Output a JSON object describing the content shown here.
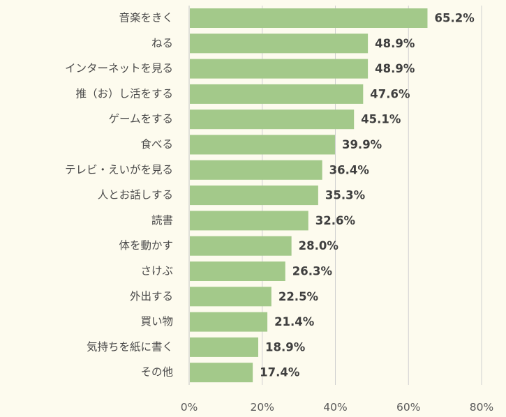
{
  "chart_data": {
    "type": "bar",
    "orientation": "horizontal",
    "title": "",
    "xlabel": "",
    "ylabel": "",
    "xlim": [
      0,
      80
    ],
    "x_ticks": [
      0,
      20,
      40,
      60,
      80
    ],
    "x_tick_labels": [
      "0%",
      "20%",
      "40%",
      "60%",
      "80%"
    ],
    "grid": true,
    "legend": "none",
    "bar_color": "#a3c98a",
    "categories": [
      "音楽をきく",
      "ねる",
      "インターネットを見る",
      "推（お）し活をする",
      "ゲームをする",
      "食べる",
      "テレビ・えいがを見る",
      "人とお話しする",
      "読書",
      "体を動かす",
      "さけぶ",
      "外出する",
      "買い物",
      "気持ちを紙に書く",
      "その他"
    ],
    "values": [
      65.2,
      48.9,
      48.9,
      47.6,
      45.1,
      39.9,
      36.4,
      35.3,
      32.6,
      28.0,
      26.3,
      22.5,
      21.4,
      18.9,
      17.4
    ],
    "value_labels": [
      "65.2%",
      "48.9%",
      "48.9%",
      "47.6%",
      "45.1%",
      "39.9%",
      "36.4%",
      "35.3%",
      "32.6%",
      "28.0%",
      "26.3%",
      "22.5%",
      "21.4%",
      "18.9%",
      "17.4%"
    ]
  }
}
